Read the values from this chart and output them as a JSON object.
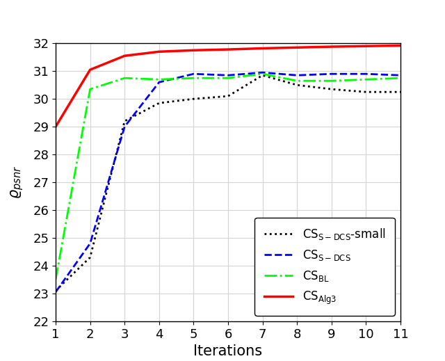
{
  "x": [
    1,
    2,
    3,
    4,
    5,
    6,
    7,
    8,
    9,
    10,
    11
  ],
  "cs_sdcs_small": [
    23.1,
    24.3,
    29.2,
    29.85,
    30.0,
    30.1,
    30.85,
    30.5,
    30.35,
    30.25,
    30.25
  ],
  "cs_sdcs": [
    23.05,
    24.8,
    29.0,
    30.6,
    30.9,
    30.85,
    30.95,
    30.85,
    30.9,
    30.9,
    30.85
  ],
  "cs_bl": [
    23.5,
    30.35,
    30.75,
    30.7,
    30.75,
    30.75,
    30.9,
    30.65,
    30.65,
    30.7,
    30.75
  ],
  "cs_alg3": [
    29.0,
    31.05,
    31.55,
    31.7,
    31.75,
    31.78,
    31.82,
    31.85,
    31.88,
    31.9,
    31.92
  ],
  "xlim": [
    1,
    11
  ],
  "ylim": [
    22,
    32
  ],
  "yticks": [
    22,
    23,
    24,
    25,
    26,
    27,
    28,
    29,
    30,
    31,
    32
  ],
  "xticks": [
    1,
    2,
    3,
    4,
    5,
    6,
    7,
    8,
    9,
    10,
    11
  ],
  "xlabel": "Iterations",
  "ylabel": "$\\varrho_{psnr}$",
  "grid_color": "#d3d3d3",
  "bg_color": "#ffffff",
  "line_black_color": "#000000",
  "line_blue_color": "#0000ff",
  "line_green_color": "#00ff00",
  "line_red_color": "#ff0000",
  "legend_label_1": "CS$_{\\mathsf{S-DCS}}$-small",
  "legend_label_2": "CS$_{\\mathsf{S-DCS}}$",
  "legend_label_3": "CS$_{\\mathsf{BL}}$",
  "legend_label_4": "CS$_{\\mathsf{Alg3}}$"
}
